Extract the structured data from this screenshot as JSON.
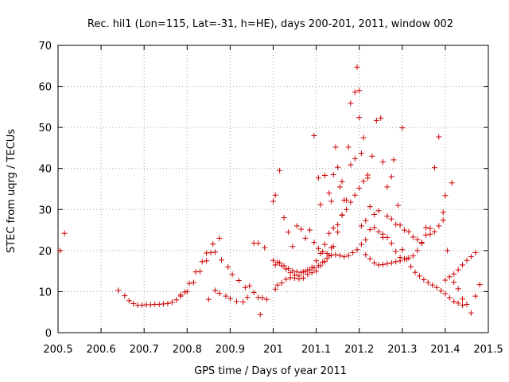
{
  "chart_data": {
    "type": "scatter",
    "title": "Rec. hil1 (Lon=115, Lat=-31, h=HE), days 200-201, 2011, window 002",
    "xlabel": "GPS time / Days of year 2011",
    "ylabel": "STEC from uqrg / TECUs",
    "xlim": [
      200.5,
      201.5
    ],
    "ylim": [
      0,
      70
    ],
    "xticks": [
      "200.5",
      "200.6",
      "200.7",
      "200.8",
      "200.9",
      "201",
      "201.1",
      "201.2",
      "201.3",
      "201.4",
      "201.5"
    ],
    "yticks": [
      "0",
      "10",
      "20",
      "30",
      "40",
      "50",
      "60",
      "70"
    ],
    "grid": true,
    "marker": "+",
    "color": "#cc0000",
    "series": [
      {
        "name": "STEC",
        "points": [
          [
            200.505,
            20.0
          ],
          [
            200.515,
            24.2
          ],
          [
            200.64,
            10.3
          ],
          [
            200.655,
            9.0
          ],
          [
            200.665,
            7.8
          ],
          [
            200.675,
            7.1
          ],
          [
            200.685,
            6.7
          ],
          [
            200.695,
            6.7
          ],
          [
            200.705,
            6.8
          ],
          [
            200.715,
            6.8
          ],
          [
            200.725,
            6.9
          ],
          [
            200.735,
            6.9
          ],
          [
            200.745,
            7.0
          ],
          [
            200.755,
            7.1
          ],
          [
            200.765,
            7.4
          ],
          [
            200.775,
            8.0
          ],
          [
            200.785,
            8.9
          ],
          [
            200.795,
            9.9
          ],
          [
            200.805,
            12.0
          ],
          [
            200.82,
            14.8
          ],
          [
            200.835,
            17.3
          ],
          [
            200.845,
            19.4
          ],
          [
            200.86,
            21.6
          ],
          [
            200.875,
            23.0
          ],
          [
            200.785,
            9.2
          ],
          [
            200.8,
            10.0
          ],
          [
            200.815,
            12.2
          ],
          [
            200.83,
            14.9
          ],
          [
            200.845,
            17.5
          ],
          [
            200.855,
            19.5
          ],
          [
            200.865,
            19.6
          ],
          [
            200.88,
            17.7
          ],
          [
            200.895,
            16.0
          ],
          [
            200.905,
            14.2
          ],
          [
            200.92,
            12.7
          ],
          [
            200.935,
            11.0
          ],
          [
            200.945,
            11.4
          ],
          [
            200.955,
            9.8
          ],
          [
            200.965,
            8.6
          ],
          [
            200.975,
            8.5
          ],
          [
            200.985,
            8.1
          ],
          [
            200.85,
            8.1
          ],
          [
            200.865,
            10.3
          ],
          [
            200.875,
            9.6
          ],
          [
            200.89,
            8.9
          ],
          [
            200.9,
            8.3
          ],
          [
            200.915,
            7.6
          ],
          [
            200.93,
            7.5
          ],
          [
            200.94,
            8.6
          ],
          [
            200.955,
            21.8
          ],
          [
            200.965,
            21.8
          ],
          [
            200.98,
            20.7
          ],
          [
            200.97,
            4.4
          ],
          [
            201.005,
            10.6
          ],
          [
            201.01,
            11.6
          ],
          [
            201.02,
            12.1
          ],
          [
            201.03,
            13.0
          ],
          [
            201.04,
            13.4
          ],
          [
            201.05,
            13.3
          ],
          [
            201.06,
            13.1
          ],
          [
            201.07,
            13.3
          ],
          [
            201.08,
            14.2
          ],
          [
            201.09,
            14.6
          ],
          [
            201.1,
            15.0
          ],
          [
            201.11,
            16.3
          ],
          [
            201.12,
            17.3
          ],
          [
            201.13,
            18.7
          ],
          [
            201.14,
            21.0
          ],
          [
            201.15,
            24.5
          ],
          [
            201.16,
            28.7
          ],
          [
            201.17,
            32.3
          ],
          [
            201.18,
            40.9
          ],
          [
            201.19,
            42.4
          ],
          [
            201.2,
            59.0
          ],
          [
            201.005,
            16.5
          ],
          [
            201.015,
            17.0
          ],
          [
            201.025,
            16.3
          ],
          [
            201.035,
            15.6
          ],
          [
            201.045,
            15.1
          ],
          [
            201.055,
            14.8
          ],
          [
            201.065,
            14.7
          ],
          [
            201.075,
            14.9
          ],
          [
            201.085,
            15.3
          ],
          [
            201.095,
            15.8
          ],
          [
            201.105,
            16.3
          ],
          [
            201.115,
            17.2
          ],
          [
            201.125,
            18.1
          ],
          [
            201.135,
            18.9
          ],
          [
            201.145,
            19.0
          ],
          [
            201.155,
            18.8
          ],
          [
            201.165,
            18.5
          ],
          [
            201.175,
            18.8
          ],
          [
            201.185,
            19.5
          ],
          [
            201.195,
            20.2
          ],
          [
            201.205,
            21.5
          ],
          [
            201.215,
            22.6
          ],
          [
            201.225,
            25.1
          ],
          [
            201.235,
            25.6
          ],
          [
            201.245,
            24.6
          ],
          [
            201.255,
            24.0
          ],
          [
            201.265,
            23.2
          ],
          [
            201.275,
            21.8
          ],
          [
            201.285,
            19.8
          ],
          [
            201.295,
            18.3
          ],
          [
            201.0,
            17.6
          ],
          [
            201.01,
            17.2
          ],
          [
            201.02,
            16.3
          ],
          [
            201.03,
            15.5
          ],
          [
            201.04,
            14.6
          ],
          [
            201.05,
            14.0
          ],
          [
            201.06,
            13.8
          ],
          [
            201.07,
            14.8
          ],
          [
            201.08,
            15.3
          ],
          [
            201.09,
            15.9
          ],
          [
            201.1,
            17.5
          ],
          [
            201.11,
            19.3
          ],
          [
            201.12,
            21.5
          ],
          [
            201.13,
            24.2
          ],
          [
            201.14,
            25.5
          ],
          [
            201.15,
            26.3
          ],
          [
            201.16,
            28.6
          ],
          [
            201.17,
            30.0
          ],
          [
            201.18,
            31.8
          ],
          [
            201.19,
            33.5
          ],
          [
            201.2,
            35.2
          ],
          [
            201.21,
            36.9
          ],
          [
            201.22,
            38.4
          ],
          [
            201.0,
            32.0
          ],
          [
            201.005,
            33.5
          ],
          [
            201.015,
            39.5
          ],
          [
            201.025,
            28.0
          ],
          [
            201.035,
            24.5
          ],
          [
            201.045,
            21.0
          ],
          [
            201.055,
            26.0
          ],
          [
            201.065,
            25.2
          ],
          [
            201.075,
            23.0
          ],
          [
            201.085,
            25.0
          ],
          [
            201.095,
            22.0
          ],
          [
            201.105,
            20.5
          ],
          [
            201.115,
            19.7
          ],
          [
            201.125,
            19.3
          ],
          [
            201.135,
            20.7
          ],
          [
            201.095,
            48.0
          ],
          [
            201.105,
            37.7
          ],
          [
            201.11,
            31.2
          ],
          [
            201.12,
            38.3
          ],
          [
            201.13,
            34.0
          ],
          [
            201.135,
            32.0
          ],
          [
            201.14,
            38.5
          ],
          [
            201.145,
            45.2
          ],
          [
            201.15,
            40.3
          ],
          [
            201.155,
            35.5
          ],
          [
            201.16,
            36.8
          ],
          [
            201.165,
            32.3
          ],
          [
            201.175,
            45.2
          ],
          [
            201.18,
            55.9
          ],
          [
            201.19,
            58.6
          ],
          [
            201.195,
            64.7
          ],
          [
            201.2,
            52.4
          ],
          [
            201.205,
            43.7
          ],
          [
            201.21,
            47.5
          ],
          [
            201.22,
            37.7
          ],
          [
            201.23,
            43.0
          ],
          [
            201.24,
            51.7
          ],
          [
            201.25,
            52.3
          ],
          [
            201.255,
            41.6
          ],
          [
            201.265,
            35.5
          ],
          [
            201.275,
            38.0
          ],
          [
            201.28,
            42.1
          ],
          [
            201.29,
            31.0
          ],
          [
            201.3,
            49.9
          ],
          [
            201.205,
            26.0
          ],
          [
            201.215,
            27.3
          ],
          [
            201.225,
            30.7
          ],
          [
            201.235,
            28.8
          ],
          [
            201.245,
            29.7
          ],
          [
            201.255,
            23.2
          ],
          [
            201.265,
            28.4
          ],
          [
            201.275,
            27.7
          ],
          [
            201.285,
            26.4
          ],
          [
            201.295,
            26.2
          ],
          [
            201.305,
            25.0
          ],
          [
            201.315,
            24.6
          ],
          [
            201.325,
            23.3
          ],
          [
            201.335,
            22.7
          ],
          [
            201.345,
            22.0
          ],
          [
            201.355,
            25.6
          ],
          [
            201.365,
            24.0
          ],
          [
            201.375,
            24.6
          ],
          [
            201.385,
            26.0
          ],
          [
            201.395,
            27.4
          ],
          [
            201.4,
            33.4
          ],
          [
            201.215,
            19.0
          ],
          [
            201.225,
            18.0
          ],
          [
            201.235,
            17.0
          ],
          [
            201.245,
            16.5
          ],
          [
            201.255,
            16.6
          ],
          [
            201.265,
            16.8
          ],
          [
            201.275,
            17.0
          ],
          [
            201.285,
            17.3
          ],
          [
            201.295,
            17.5
          ],
          [
            201.305,
            18.0
          ],
          [
            201.315,
            18.2
          ],
          [
            201.325,
            18.7
          ],
          [
            201.335,
            20.0
          ],
          [
            201.345,
            21.8
          ],
          [
            201.355,
            23.8
          ],
          [
            201.365,
            25.4
          ],
          [
            201.375,
            40.2
          ],
          [
            201.385,
            47.7
          ],
          [
            201.395,
            29.3
          ],
          [
            201.405,
            20.0
          ],
          [
            201.415,
            36.5
          ],
          [
            201.3,
            20.2
          ],
          [
            201.31,
            17.9
          ],
          [
            201.32,
            16.1
          ],
          [
            201.33,
            14.7
          ],
          [
            201.34,
            13.8
          ],
          [
            201.35,
            12.9
          ],
          [
            201.36,
            12.2
          ],
          [
            201.37,
            11.6
          ],
          [
            201.38,
            11.0
          ],
          [
            201.39,
            10.2
          ],
          [
            201.4,
            9.5
          ],
          [
            201.41,
            8.5
          ],
          [
            201.42,
            7.6
          ],
          [
            201.43,
            7.2
          ],
          [
            201.44,
            6.7
          ],
          [
            201.45,
            6.9
          ],
          [
            201.46,
            4.8
          ],
          [
            201.4,
            12.8
          ],
          [
            201.41,
            13.6
          ],
          [
            201.42,
            14.3
          ],
          [
            201.43,
            15.3
          ],
          [
            201.44,
            16.5
          ],
          [
            201.45,
            17.6
          ],
          [
            201.46,
            18.5
          ],
          [
            201.47,
            19.5
          ],
          [
            201.48,
            11.7
          ],
          [
            201.47,
            8.9
          ],
          [
            201.44,
            8.2
          ],
          [
            201.43,
            10.7
          ],
          [
            201.42,
            12.3
          ]
        ]
      }
    ]
  }
}
